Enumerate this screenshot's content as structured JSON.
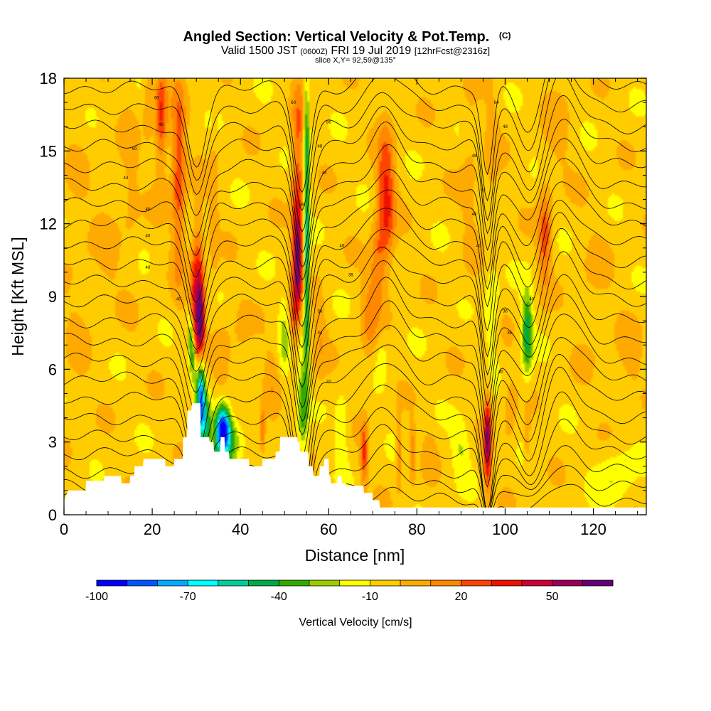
{
  "header": {
    "title": "Angled Section: Vertical Velocity & Pot.Temp.",
    "title_mark": "(C)",
    "valid_prefix": "Valid 1500 JST",
    "valid_zulu": "(0600Z)",
    "valid_date": "FRI 19 Jul 2019",
    "forecast": "[12hrFcst@2316z]",
    "slice": "slice X,Y= 92,59@135°"
  },
  "chart_data": {
    "type": "heatmap",
    "title": "Angled Section: Vertical Velocity & Pot.Temp.",
    "xlabel": "Distance [nm]",
    "ylabel": "Height [Kft MSL]",
    "xlim": [
      0,
      132
    ],
    "ylim": [
      0,
      18
    ],
    "xticks": [
      "0",
      "20",
      "40",
      "60",
      "80",
      "100",
      "120"
    ],
    "yticks": [
      "0",
      "3",
      "6",
      "9",
      "12",
      "15",
      "18"
    ],
    "background_value": -5,
    "color_scale": {
      "label": "Vertical Velocity [cm/s]",
      "min": -100,
      "max": 70,
      "step": 10,
      "tick_labels": [
        "-100",
        "-70",
        "-40",
        "-10",
        "20",
        "50"
      ],
      "colors": [
        "#0000ff",
        "#0055ff",
        "#00aaff",
        "#00ffff",
        "#00cc99",
        "#00aa44",
        "#33aa00",
        "#99cc00",
        "#ffff00",
        "#ffcc00",
        "#ffaa00",
        "#ff8800",
        "#ff4400",
        "#ee1100",
        "#cc0033",
        "#990055",
        "#660077"
      ]
    },
    "terrain": [
      [
        0,
        0.6
      ],
      [
        1,
        1
      ],
      [
        4.9,
        1
      ],
      [
        5,
        1.4
      ],
      [
        9,
        1.4
      ],
      [
        9.1,
        1.6
      ],
      [
        12.9,
        1.6
      ],
      [
        13,
        1.3
      ],
      [
        14.9,
        1.3
      ],
      [
        15,
        1.6
      ],
      [
        15.9,
        1.6
      ],
      [
        16,
        2
      ],
      [
        17.9,
        2
      ],
      [
        18,
        2.3
      ],
      [
        22.9,
        2.3
      ],
      [
        23,
        2
      ],
      [
        24.9,
        2
      ],
      [
        25,
        2.3
      ],
      [
        26.9,
        2.3
      ],
      [
        27,
        3.2
      ],
      [
        27.9,
        3.2
      ],
      [
        28,
        4.3
      ],
      [
        28.9,
        4.3
      ],
      [
        29,
        4.6
      ],
      [
        30.9,
        4.6
      ],
      [
        31,
        3.2
      ],
      [
        32.9,
        3.2
      ],
      [
        33,
        3
      ],
      [
        33.9,
        3
      ],
      [
        34,
        2.6
      ],
      [
        35.4,
        2.6
      ],
      [
        35.5,
        3.2
      ],
      [
        36.4,
        3.2
      ],
      [
        36.5,
        2.6
      ],
      [
        37.4,
        2.6
      ],
      [
        37.5,
        2.3
      ],
      [
        41.9,
        2.3
      ],
      [
        42,
        2
      ],
      [
        44.9,
        2
      ],
      [
        45,
        2.3
      ],
      [
        47.9,
        2.3
      ],
      [
        48,
        2.6
      ],
      [
        48.9,
        2.6
      ],
      [
        49,
        3.2
      ],
      [
        52.9,
        3.2
      ],
      [
        53,
        3
      ],
      [
        53.4,
        3
      ],
      [
        53.5,
        2.6
      ],
      [
        55.4,
        2.6
      ],
      [
        55.5,
        2
      ],
      [
        56.4,
        2
      ],
      [
        56.5,
        1.6
      ],
      [
        57.9,
        1.6
      ],
      [
        58,
        2
      ],
      [
        58.9,
        2
      ],
      [
        59,
        2.3
      ],
      [
        60,
        2.3
      ],
      [
        60.1,
        1.6
      ],
      [
        60.4,
        1.6
      ],
      [
        60.5,
        1.3
      ],
      [
        61.9,
        1.3
      ],
      [
        62,
        1.6
      ],
      [
        62.9,
        1.6
      ],
      [
        63,
        1.3
      ],
      [
        63.9,
        1.3
      ],
      [
        64,
        1.2
      ],
      [
        67.9,
        1.2
      ],
      [
        68,
        0.9
      ],
      [
        69.9,
        0.9
      ],
      [
        70,
        0.6
      ],
      [
        71.5,
        0.6
      ],
      [
        71.6,
        0.3
      ],
      [
        132,
        0.3
      ]
    ],
    "features": [
      {
        "x": 3,
        "z": 9,
        "sx": 3,
        "sz": 9,
        "tilt": 0,
        "value": 5
      },
      {
        "x": 10,
        "z": 11,
        "sx": 3,
        "sz": 3,
        "tilt": 0,
        "value": 6
      },
      {
        "x": 15,
        "z": 14,
        "sx": 2,
        "sz": 4,
        "tilt": 0,
        "value": 8
      },
      {
        "x": 22,
        "z": 16,
        "sx": 2,
        "sz": 3,
        "tilt": 0,
        "value": 10
      },
      {
        "x": 26,
        "z": 14,
        "sx": 1.6,
        "sz": 4,
        "tilt": 0,
        "value": 32
      },
      {
        "x": 22,
        "z": 16.5,
        "sx": 1.2,
        "sz": 2,
        "tilt": 0,
        "value": 25
      },
      {
        "x": 19,
        "z": 17,
        "sx": 1,
        "sz": 1.5,
        "tilt": 0,
        "value": 15
      },
      {
        "x": 30,
        "z": 9,
        "sx": 1.4,
        "sz": 3,
        "tilt": 0.1,
        "value": 45
      },
      {
        "x": 31,
        "z": 8,
        "sx": 0.9,
        "sz": 1.6,
        "tilt": 0,
        "value": 60
      },
      {
        "x": 29,
        "z": 6.8,
        "sx": 0.8,
        "sz": 1.4,
        "tilt": -0.3,
        "value": -55
      },
      {
        "x": 31,
        "z": 5,
        "sx": 0.9,
        "sz": 1.6,
        "tilt": 0,
        "value": -70
      },
      {
        "x": 32,
        "z": 3.8,
        "sx": 1.4,
        "sz": 1.2,
        "tilt": 0,
        "value": -40
      },
      {
        "x": 36,
        "z": 3.6,
        "sx": 1.6,
        "sz": 0.9,
        "tilt": 0,
        "value": -90
      },
      {
        "x": 37,
        "z": 2.9,
        "sx": 3,
        "sz": 1,
        "tilt": 0.6,
        "value": -38
      },
      {
        "x": 34,
        "z": 12.5,
        "sx": 1,
        "sz": 3,
        "tilt": 0,
        "value": 12
      },
      {
        "x": 36,
        "z": 6.5,
        "sx": 2,
        "sz": 1.5,
        "tilt": 0,
        "value": 12
      },
      {
        "x": 40,
        "z": 7,
        "sx": 2,
        "sz": 2,
        "tilt": 0,
        "value": 6
      },
      {
        "x": 45,
        "z": 3.5,
        "sx": 0.6,
        "sz": 0.9,
        "tilt": 0,
        "value": 30
      },
      {
        "x": 47,
        "z": 5,
        "sx": 2,
        "sz": 2,
        "tilt": 0,
        "value": 10
      },
      {
        "x": 50,
        "z": 7,
        "sx": 1.4,
        "sz": 1.8,
        "tilt": 0,
        "value": -18
      },
      {
        "x": 53,
        "z": 14,
        "sx": 1.4,
        "sz": 4,
        "tilt": 0.05,
        "value": 30
      },
      {
        "x": 53,
        "z": 10.5,
        "sx": 1,
        "sz": 2,
        "tilt": 0,
        "value": 60
      },
      {
        "x": 52,
        "z": 8,
        "sx": 1.2,
        "sz": 1.3,
        "tilt": 0,
        "value": 25
      },
      {
        "x": 55,
        "z": 10.5,
        "sx": 0.6,
        "sz": 5,
        "tilt": 0,
        "value": -55
      },
      {
        "x": 55,
        "z": 16,
        "sx": 0.7,
        "sz": 2,
        "tilt": 0,
        "value": -25
      },
      {
        "x": 54,
        "z": 4.5,
        "sx": 1,
        "sz": 2,
        "tilt": 0,
        "value": -30
      },
      {
        "x": 58,
        "z": 7.5,
        "sx": 1.5,
        "sz": 2,
        "tilt": 0,
        "value": 12
      },
      {
        "x": 63,
        "z": 3.5,
        "sx": 1.4,
        "sz": 1.5,
        "tilt": 0,
        "value": -15
      },
      {
        "x": 68,
        "z": 2.5,
        "sx": 0.8,
        "sz": 1.2,
        "tilt": 0,
        "value": 35
      },
      {
        "x": 69,
        "z": 8,
        "sx": 1.8,
        "sz": 2,
        "tilt": 0,
        "value": 15
      },
      {
        "x": 73,
        "z": 13,
        "sx": 2,
        "sz": 3,
        "tilt": 0,
        "value": 38
      },
      {
        "x": 71,
        "z": 10,
        "sx": 1.5,
        "sz": 2,
        "tilt": 0,
        "value": 20
      },
      {
        "x": 72,
        "z": 6.5,
        "sx": 1.5,
        "sz": 1.4,
        "tilt": 0,
        "value": -10
      },
      {
        "x": 76,
        "z": 2.5,
        "sx": 0.6,
        "sz": 1.2,
        "tilt": 0,
        "value": 28
      },
      {
        "x": 79,
        "z": 2.5,
        "sx": 0.6,
        "sz": 1.2,
        "tilt": 0,
        "value": 22
      },
      {
        "x": 83,
        "z": 2.6,
        "sx": 1.5,
        "sz": 1.2,
        "tilt": 0,
        "value": 8
      },
      {
        "x": 90,
        "z": 2.8,
        "sx": 2,
        "sz": 1.2,
        "tilt": 0,
        "value": -15
      },
      {
        "x": 92,
        "z": 14,
        "sx": 2,
        "sz": 4,
        "tilt": 0,
        "value": 8
      },
      {
        "x": 96,
        "z": 3,
        "sx": 0.8,
        "sz": 1.8,
        "tilt": 0,
        "value": 65
      },
      {
        "x": 97,
        "z": 15,
        "sx": 1.6,
        "sz": 3,
        "tilt": 0,
        "value": 10
      },
      {
        "x": 97,
        "z": 8.5,
        "sx": 1.5,
        "sz": 2,
        "tilt": 0,
        "value": -15
      },
      {
        "x": 101,
        "z": 4,
        "sx": 1.5,
        "sz": 2,
        "tilt": 0,
        "value": 10
      },
      {
        "x": 105,
        "z": 7.5,
        "sx": 1.2,
        "sz": 1.7,
        "tilt": 0,
        "value": -42
      },
      {
        "x": 105,
        "z": 3.2,
        "sx": 0.6,
        "sz": 0.9,
        "tilt": 0,
        "value": 18
      },
      {
        "x": 109,
        "z": 11.5,
        "sx": 1.5,
        "sz": 2,
        "tilt": 0,
        "value": 30
      },
      {
        "x": 112,
        "z": 16,
        "sx": 3,
        "sz": 2,
        "tilt": 0,
        "value": 8
      },
      {
        "x": 120,
        "z": 9,
        "sx": 4,
        "sz": 3,
        "tilt": 0,
        "value": 6
      },
      {
        "x": 128,
        "z": 6,
        "sx": 3,
        "sz": 2,
        "tilt": 0,
        "value": 8
      },
      {
        "x": 125,
        "z": 1.5,
        "sx": 4,
        "sz": 1.2,
        "tilt": 0,
        "value": -15
      }
    ],
    "isentropes": {
      "base_heights": [
        0.6,
        1.2,
        1.8,
        2.5,
        3.2,
        4.0,
        4.8,
        5.6,
        6.4,
        7.2,
        8.0,
        8.8,
        9.6,
        10.4,
        11.2,
        12.0,
        12.8,
        13.6,
        14.4,
        15.2,
        16.0,
        16.8,
        17.6
      ],
      "bumps": [
        {
          "x": 30,
          "w": 3,
          "amp": -1.0
        },
        {
          "x": 54,
          "w": 2.5,
          "amp": -1.4
        },
        {
          "x": 73,
          "w": 5,
          "amp": 0.5
        },
        {
          "x": 96,
          "w": 1.8,
          "amp": -1.2
        },
        {
          "x": 106,
          "w": 4,
          "amp": -0.8
        },
        {
          "x": 112,
          "w": 6,
          "amp": 0.7
        }
      ]
    },
    "contour_labels": [
      {
        "text": "60",
        "x": 21,
        "z": 17.2
      },
      {
        "text": "48",
        "x": 22,
        "z": 16.1
      },
      {
        "text": "60",
        "x": 16,
        "z": 15.1
      },
      {
        "text": "44",
        "x": 14,
        "z": 13.9
      },
      {
        "text": "48",
        "x": 19,
        "z": 12.6
      },
      {
        "text": "40",
        "x": 19,
        "z": 11.5
      },
      {
        "text": "40",
        "x": 19,
        "z": 10.2
      },
      {
        "text": "40",
        "x": 26,
        "z": 8.9
      },
      {
        "text": "36",
        "x": 30,
        "z": 6.7
      },
      {
        "text": "32",
        "x": 31,
        "z": 5.9
      },
      {
        "text": "60",
        "x": 52,
        "z": 17.0
      },
      {
        "text": "56",
        "x": 60,
        "z": 16.2
      },
      {
        "text": "48",
        "x": 58,
        "z": 15.2
      },
      {
        "text": "44",
        "x": 59,
        "z": 14.1
      },
      {
        "text": "48",
        "x": 54,
        "z": 12.8
      },
      {
        "text": "40",
        "x": 63,
        "z": 11.1
      },
      {
        "text": "38",
        "x": 65,
        "z": 9.9
      },
      {
        "text": "36",
        "x": 58,
        "z": 8.4
      },
      {
        "text": "34",
        "x": 58,
        "z": 7.5
      },
      {
        "text": "32",
        "x": 60,
        "z": 5.5
      },
      {
        "text": "64",
        "x": 98,
        "z": 17.0
      },
      {
        "text": "48",
        "x": 100,
        "z": 16.0
      },
      {
        "text": "48",
        "x": 93,
        "z": 14.8
      },
      {
        "text": "52",
        "x": 95,
        "z": 13.4
      },
      {
        "text": "48",
        "x": 93,
        "z": 12.4
      },
      {
        "text": "40",
        "x": 94,
        "z": 11.1
      },
      {
        "text": "36",
        "x": 100,
        "z": 8.4
      },
      {
        "text": "34",
        "x": 101,
        "z": 7.5
      },
      {
        "text": "40",
        "x": 106,
        "z": 8.9
      },
      {
        "text": "30",
        "x": 99,
        "z": 5.9
      }
    ]
  }
}
